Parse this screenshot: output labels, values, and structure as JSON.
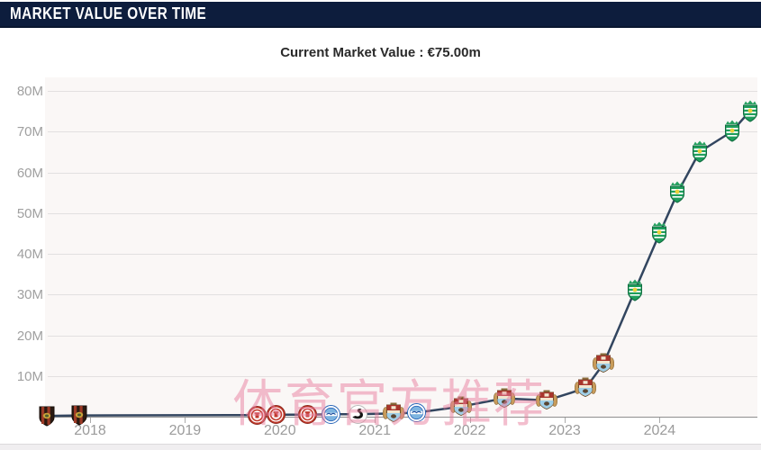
{
  "header": {
    "title": "MARKET VALUE OVER TIME"
  },
  "chart": {
    "title": "Current Market Value : €75.00m"
  },
  "watermark": {
    "text": "体育官方推荐",
    "color": "rgba(231,126,158,0.5)"
  },
  "colors": {
    "header_bg": "#0d1d3d",
    "line": "#32455f",
    "grid": "#e2e0e0",
    "axis_label": "#a0a0a0"
  },
  "chart_data": {
    "type": "line",
    "title": "Current Market Value : €75.00m",
    "current_value": "€75.00m",
    "unit": "€m",
    "grid": true,
    "x_tick_years": [
      2018,
      2019,
      2020,
      2021,
      2022,
      2023,
      2024
    ],
    "x_tick_labels": [
      "2018",
      "2019",
      "2020",
      "2021",
      "2022",
      "2023",
      "2024"
    ],
    "y_tick_values": [
      10,
      20,
      30,
      40,
      50,
      60,
      70,
      80
    ],
    "y_tick_labels": [
      "10M",
      "20M",
      "30M",
      "40M",
      "50M",
      "60M",
      "70M",
      "80M"
    ],
    "xlim": [
      2017.45,
      2025.05
    ],
    "ylim": [
      0,
      83.5
    ],
    "points": [
      {
        "year": 2017.54,
        "value": 0.2,
        "club": "brommapojkarna",
        "club_name": "IF Brommapojkarna"
      },
      {
        "year": 2017.89,
        "value": 0.3,
        "club": "brommapojkarna",
        "club_name": "IF Brommapojkarna"
      },
      {
        "year": 2019.76,
        "value": 0.4,
        "club": "st-pauli",
        "club_name": "FC St. Pauli"
      },
      {
        "year": 2019.96,
        "value": 0.5,
        "club": "st-pauli",
        "club_name": "FC St. Pauli"
      },
      {
        "year": 2020.29,
        "value": 0.5,
        "club": "st-pauli",
        "club_name": "FC St. Pauli"
      },
      {
        "year": 2020.54,
        "value": 0.6,
        "club": "brighton",
        "club_name": "Brighton & Hove Albion"
      },
      {
        "year": 2020.82,
        "value": 0.6,
        "club": "swansea",
        "club_name": "Swansea City"
      },
      {
        "year": 2021.2,
        "value": 0.8,
        "club": "coventry",
        "club_name": "Coventry City"
      },
      {
        "year": 2021.44,
        "value": 1.0,
        "club": "brighton",
        "club_name": "Brighton & Hove Albion"
      },
      {
        "year": 2021.91,
        "value": 2.5,
        "club": "coventry",
        "club_name": "Coventry City"
      },
      {
        "year": 2022.36,
        "value": 4.5,
        "club": "coventry",
        "club_name": "Coventry City"
      },
      {
        "year": 2022.81,
        "value": 4.0,
        "club": "coventry",
        "club_name": "Coventry City"
      },
      {
        "year": 2023.22,
        "value": 7.0,
        "club": "coventry",
        "club_name": "Coventry City"
      },
      {
        "year": 2023.41,
        "value": 13.0,
        "club": "coventry",
        "club_name": "Coventry City"
      },
      {
        "year": 2023.74,
        "value": 31.0,
        "club": "sporting-cp",
        "club_name": "Sporting CP"
      },
      {
        "year": 2024.0,
        "value": 45.0,
        "club": "sporting-cp",
        "club_name": "Sporting CP"
      },
      {
        "year": 2024.19,
        "value": 55.0,
        "club": "sporting-cp",
        "club_name": "Sporting CP"
      },
      {
        "year": 2024.42,
        "value": 65.0,
        "club": "sporting-cp",
        "club_name": "Sporting CP"
      },
      {
        "year": 2024.76,
        "value": 70.0,
        "club": "sporting-cp",
        "club_name": "Sporting CP"
      },
      {
        "year": 2024.95,
        "value": 75.0,
        "club": "sporting-cp",
        "club_name": "Sporting CP"
      }
    ]
  }
}
